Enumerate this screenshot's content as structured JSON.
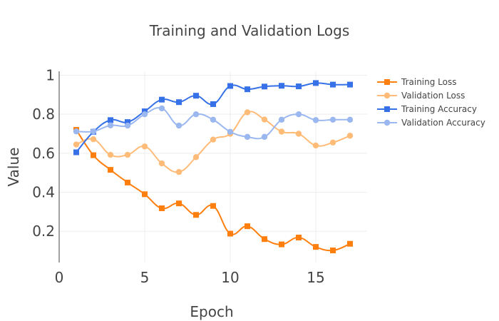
{
  "chart_data": {
    "type": "line",
    "title": "Training and Validation Logs",
    "xlabel": "Epoch",
    "ylabel": "Value",
    "xlim": [
      0,
      18
    ],
    "ylim": [
      0.04,
      1.02
    ],
    "xticks": [
      0,
      5,
      10,
      15
    ],
    "yticks": [
      0.2,
      0.4,
      0.6,
      0.8,
      1
    ],
    "ytick_labels": [
      "0.2",
      "0.4",
      "0.6",
      "0.8",
      "1"
    ],
    "grid": true,
    "legend_position": "top-right",
    "x": [
      1,
      2,
      3,
      4,
      5,
      6,
      7,
      8,
      9,
      10,
      11,
      12,
      13,
      14,
      15,
      16,
      17
    ],
    "series": [
      {
        "name": "Training Loss",
        "color": "#ff7f0e",
        "marker": "square",
        "values": [
          0.72,
          0.59,
          0.515,
          0.45,
          0.39,
          0.318,
          0.343,
          0.284,
          0.33,
          0.188,
          0.226,
          0.16,
          0.133,
          0.168,
          0.12,
          0.102,
          0.136
        ]
      },
      {
        "name": "Validation Loss",
        "color": "#ffbb78",
        "marker": "circle",
        "values": [
          0.645,
          0.672,
          0.592,
          0.592,
          0.635,
          0.548,
          0.504,
          0.58,
          0.67,
          0.7,
          0.81,
          0.773,
          0.711,
          0.7,
          0.64,
          0.655,
          0.69
        ]
      },
      {
        "name": "Training Accuracy",
        "color": "#3671e8",
        "marker": "square",
        "values": [
          0.605,
          0.71,
          0.77,
          0.76,
          0.815,
          0.875,
          0.862,
          0.895,
          0.852,
          0.945,
          0.928,
          0.942,
          0.946,
          0.943,
          0.96,
          0.952,
          0.952
        ]
      },
      {
        "name": "Validation Accuracy",
        "color": "#9bb7ef",
        "marker": "circle",
        "values": [
          0.712,
          0.712,
          0.743,
          0.742,
          0.8,
          0.83,
          0.742,
          0.8,
          0.772,
          0.71,
          0.684,
          0.684,
          0.772,
          0.8,
          0.77,
          0.772,
          0.772
        ]
      }
    ]
  }
}
